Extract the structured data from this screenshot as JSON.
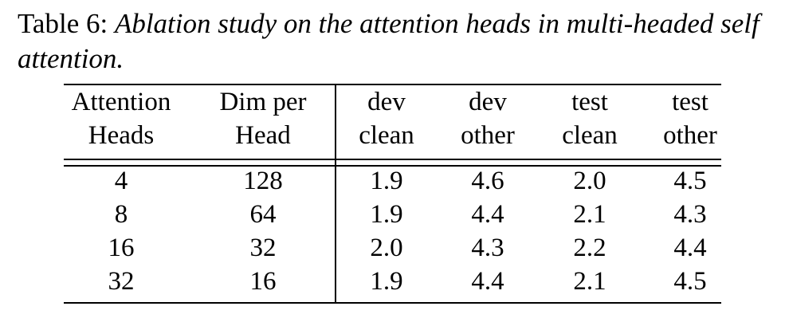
{
  "caption": {
    "label": "Table 6:",
    "text": "Ablation study on the attention heads in multi-headed self attention."
  },
  "table": {
    "header": [
      [
        "Attention",
        "Heads"
      ],
      [
        "Dim per",
        "Head"
      ],
      [
        "dev",
        "clean"
      ],
      [
        "dev",
        "other"
      ],
      [
        "test",
        "clean"
      ],
      [
        "test",
        "other"
      ]
    ],
    "rows": [
      [
        "4",
        "128",
        "1.9",
        "4.6",
        "2.0",
        "4.5"
      ],
      [
        "8",
        "64",
        "1.9",
        "4.4",
        "2.1",
        "4.3"
      ],
      [
        "16",
        "32",
        "2.0",
        "4.3",
        "2.2",
        "4.4"
      ],
      [
        "32",
        "16",
        "1.9",
        "4.4",
        "2.1",
        "4.5"
      ]
    ]
  }
}
